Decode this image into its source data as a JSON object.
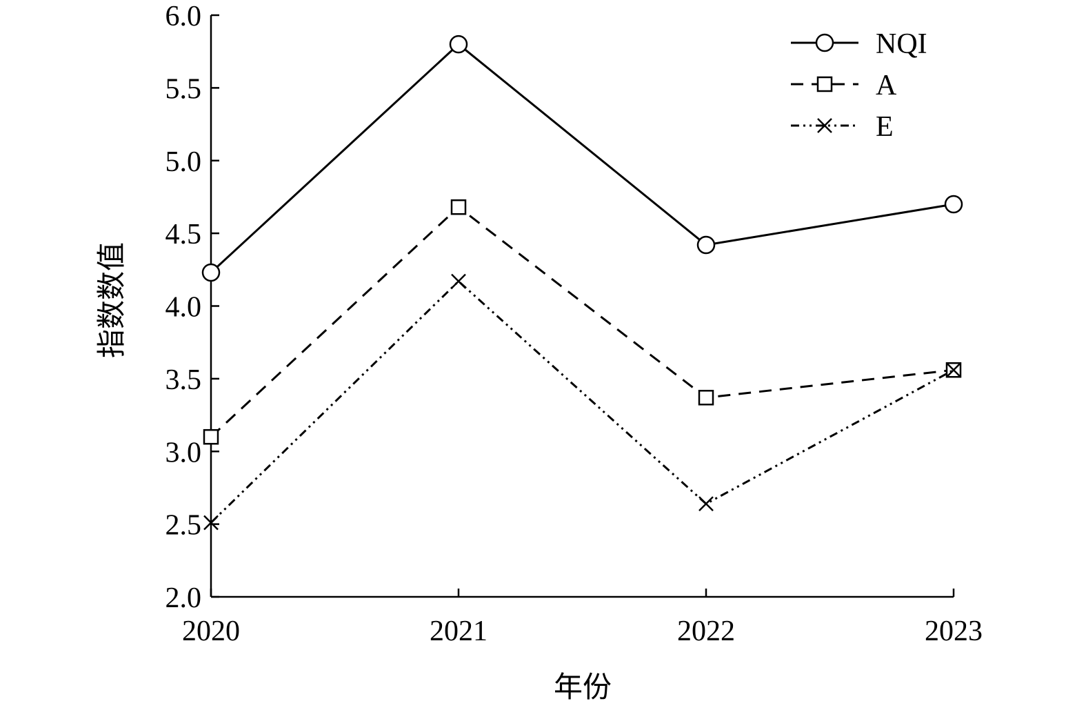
{
  "chart_data": {
    "type": "line",
    "xlabel": "年份",
    "ylabel": "指数数值",
    "categories": [
      "2020",
      "2021",
      "2022",
      "2023"
    ],
    "ylim": [
      2.0,
      6.0
    ],
    "yticks": [
      "2.0",
      "2.5",
      "3.0",
      "3.5",
      "4.0",
      "4.5",
      "5.0",
      "5.5",
      "6.0"
    ],
    "grid": false,
    "legend_position": "top-right",
    "series": [
      {
        "name": "NQI",
        "values": [
          4.23,
          5.8,
          4.42,
          4.7
        ],
        "marker": "circle",
        "line_style": "solid"
      },
      {
        "name": "A",
        "values": [
          3.1,
          4.68,
          3.37,
          3.56
        ],
        "marker": "square",
        "line_style": "dashed"
      },
      {
        "name": "E",
        "values": [
          2.51,
          4.17,
          2.64,
          3.56
        ],
        "marker": "x",
        "line_style": "dash-dot-dot"
      }
    ]
  }
}
